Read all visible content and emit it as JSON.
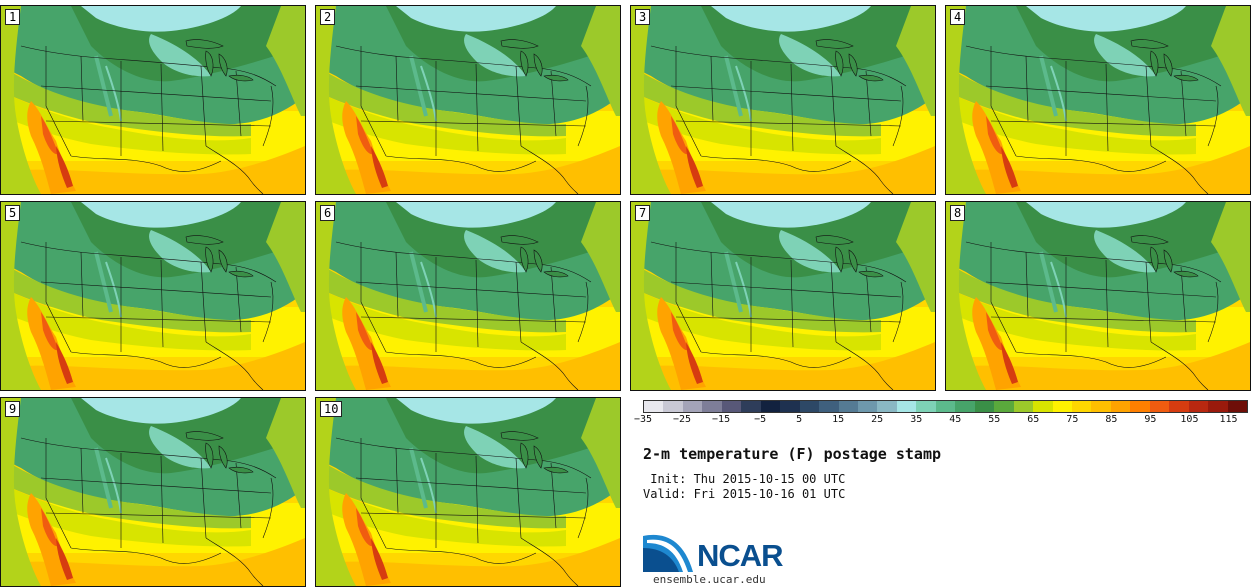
{
  "panels": [
    {
      "label": "1"
    },
    {
      "label": "2"
    },
    {
      "label": "3"
    },
    {
      "label": "4"
    },
    {
      "label": "5"
    },
    {
      "label": "6"
    },
    {
      "label": "7"
    },
    {
      "label": "8"
    },
    {
      "label": "9"
    },
    {
      "label": "10"
    }
  ],
  "colorbar": {
    "colors": [
      "#e8e8ee",
      "#c8c8d4",
      "#a4a4b8",
      "#7e7e98",
      "#585878",
      "#2e3d5a",
      "#12223f",
      "#1e3150",
      "#2d4866",
      "#3f607e",
      "#557b94",
      "#6e98ac",
      "#8ab8c4",
      "#a6e6e6",
      "#7ed2b6",
      "#5cba8c",
      "#47a46a",
      "#3a8f47",
      "#5aa93c",
      "#9cc92a",
      "#d8e400",
      "#fff200",
      "#ffd700",
      "#ffbf00",
      "#ffa300",
      "#ff7f00",
      "#f05c10",
      "#d63c10",
      "#b82810",
      "#9a1a0c",
      "#6e0e08"
    ],
    "tick_labels": [
      "−35",
      "−25",
      "−15",
      "−5",
      "5",
      "15",
      "25",
      "35",
      "45",
      "55",
      "65",
      "75",
      "85",
      "95",
      "105",
      "115"
    ]
  },
  "title": "2-m temperature (F) postage stamp",
  "init_line": " Init: Thu 2015-10-15 00 UTC",
  "valid_line": "Valid: Fri 2015-10-16 01 UTC",
  "logo": {
    "text": "NCAR",
    "url": "ensemble.ucar.edu",
    "brand_color": "#0a4f8f"
  }
}
